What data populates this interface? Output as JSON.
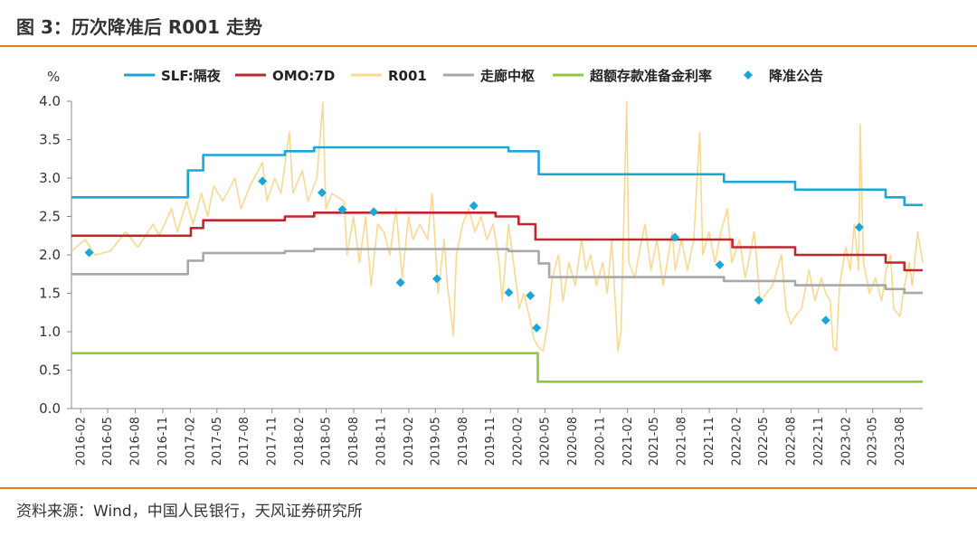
{
  "figure_title": "图 3：历次降准后 R001 走势",
  "source": "资料来源：Wind，中国人民银行，天风证券研究所",
  "chart_data": {
    "type": "line",
    "ylabel": "%",
    "ylim": [
      0,
      4.0
    ],
    "yticks": [
      "4.0",
      "3.5",
      "3.0",
      "2.5",
      "2.0",
      "1.5",
      "1.0",
      "0.5",
      "0.0"
    ],
    "yticks_values": [
      4.0,
      3.5,
      3.0,
      2.5,
      2.0,
      1.5,
      1.0,
      0.5,
      0.0
    ],
    "xlim": [
      "2016-01-01",
      "2023-10-15"
    ],
    "xticks": [
      "2016-02",
      "2016-05",
      "2016-08",
      "2016-11",
      "2017-02",
      "2017-05",
      "2017-08",
      "2017-11",
      "2018-02",
      "2018-05",
      "2018-08",
      "2018-11",
      "2019-02",
      "2019-05",
      "2019-08",
      "2019-11",
      "2020-02",
      "2020-05",
      "2020-08",
      "2020-11",
      "2021-02",
      "2021-05",
      "2021-08",
      "2021-11",
      "2022-02",
      "2022-05",
      "2022-08",
      "2022-11",
      "2023-02",
      "2023-05",
      "2023-08"
    ],
    "legend_position": "top",
    "series": [
      {
        "name": "SLF:隔夜",
        "color": "#1aa7d8",
        "kind": "step",
        "points": [
          [
            "2016-01-01",
            2.75
          ],
          [
            "2017-01-24",
            3.1
          ],
          [
            "2017-03-16",
            3.3
          ],
          [
            "2017-12-14",
            3.35
          ],
          [
            "2018-03-22",
            3.4
          ],
          [
            "2019-12-31",
            3.35
          ],
          [
            "2020-04-10",
            3.05
          ],
          [
            "2021-12-20",
            2.95
          ],
          [
            "2022-08-15",
            2.85
          ],
          [
            "2023-06-13",
            2.75
          ],
          [
            "2023-08-15",
            2.65
          ],
          [
            "2023-10-15",
            2.65
          ]
        ]
      },
      {
        "name": "OMO:7D",
        "color": "#c0262d",
        "kind": "step",
        "points": [
          [
            "2016-01-01",
            2.25
          ],
          [
            "2017-02-03",
            2.35
          ],
          [
            "2017-03-16",
            2.45
          ],
          [
            "2017-12-14",
            2.5
          ],
          [
            "2018-03-22",
            2.55
          ],
          [
            "2019-11-18",
            2.5
          ],
          [
            "2020-02-03",
            2.4
          ],
          [
            "2020-03-30",
            2.2
          ],
          [
            "2022-01-17",
            2.1
          ],
          [
            "2022-08-15",
            2.0
          ],
          [
            "2023-06-13",
            1.9
          ],
          [
            "2023-08-15",
            1.8
          ],
          [
            "2023-10-15",
            1.8
          ]
        ]
      },
      {
        "name": "R001",
        "color": "#fad890",
        "kind": "line",
        "width": 1.6,
        "points": [
          [
            "2016-01-01",
            2.05
          ],
          [
            "2016-02-15",
            2.2
          ],
          [
            "2016-03-20",
            2.0
          ],
          [
            "2016-05-10",
            2.05
          ],
          [
            "2016-06-30",
            2.3
          ],
          [
            "2016-08-10",
            2.1
          ],
          [
            "2016-09-30",
            2.4
          ],
          [
            "2016-10-20",
            2.25
          ],
          [
            "2016-11-30",
            2.6
          ],
          [
            "2016-12-20",
            2.3
          ],
          [
            "2017-01-20",
            2.7
          ],
          [
            "2017-02-10",
            2.4
          ],
          [
            "2017-03-10",
            2.8
          ],
          [
            "2017-03-31",
            2.5
          ],
          [
            "2017-04-20",
            2.9
          ],
          [
            "2017-05-20",
            2.7
          ],
          [
            "2017-06-30",
            3.0
          ],
          [
            "2017-07-20",
            2.6
          ],
          [
            "2017-08-20",
            2.9
          ],
          [
            "2017-09-30",
            3.2
          ],
          [
            "2017-10-15",
            2.7
          ],
          [
            "2017-11-10",
            3.0
          ],
          [
            "2017-12-01",
            2.8
          ],
          [
            "2017-12-29",
            3.6
          ],
          [
            "2018-01-10",
            2.8
          ],
          [
            "2018-02-10",
            3.1
          ],
          [
            "2018-03-01",
            2.7
          ],
          [
            "2018-03-31",
            3.0
          ],
          [
            "2018-04-20",
            3.98
          ],
          [
            "2018-04-30",
            2.6
          ],
          [
            "2018-05-20",
            2.8
          ],
          [
            "2018-06-30",
            2.7
          ],
          [
            "2018-07-10",
            2.0
          ],
          [
            "2018-07-31",
            2.5
          ],
          [
            "2018-08-20",
            1.9
          ],
          [
            "2018-09-10",
            2.5
          ],
          [
            "2018-09-28",
            1.6
          ],
          [
            "2018-10-20",
            2.4
          ],
          [
            "2018-11-10",
            2.3
          ],
          [
            "2018-11-30",
            2.0
          ],
          [
            "2018-12-20",
            2.6
          ],
          [
            "2019-01-10",
            1.7
          ],
          [
            "2019-01-31",
            2.5
          ],
          [
            "2019-02-15",
            2.2
          ],
          [
            "2019-03-10",
            2.4
          ],
          [
            "2019-04-05",
            2.2
          ],
          [
            "2019-04-20",
            2.8
          ],
          [
            "2019-05-10",
            1.5
          ],
          [
            "2019-05-30",
            2.2
          ],
          [
            "2019-06-10",
            1.6
          ],
          [
            "2019-06-30",
            0.95
          ],
          [
            "2019-07-10",
            2.0
          ],
          [
            "2019-07-31",
            2.4
          ],
          [
            "2019-08-20",
            2.6
          ],
          [
            "2019-09-10",
            2.3
          ],
          [
            "2019-09-30",
            2.5
          ],
          [
            "2019-10-20",
            2.2
          ],
          [
            "2019-11-10",
            2.4
          ],
          [
            "2019-11-30",
            1.9
          ],
          [
            "2019-12-10",
            1.4
          ],
          [
            "2019-12-31",
            2.4
          ],
          [
            "2020-01-20",
            1.8
          ],
          [
            "2020-02-05",
            1.3
          ],
          [
            "2020-02-20",
            1.5
          ],
          [
            "2020-03-10",
            1.2
          ],
          [
            "2020-03-25",
            0.9
          ],
          [
            "2020-04-10",
            0.8
          ],
          [
            "2020-04-25",
            0.75
          ],
          [
            "2020-05-10",
            1.1
          ],
          [
            "2020-05-25",
            1.7
          ],
          [
            "2020-06-15",
            2.0
          ],
          [
            "2020-06-30",
            1.4
          ],
          [
            "2020-07-20",
            1.9
          ],
          [
            "2020-08-10",
            1.6
          ],
          [
            "2020-08-31",
            2.2
          ],
          [
            "2020-09-15",
            1.8
          ],
          [
            "2020-09-30",
            2.0
          ],
          [
            "2020-10-20",
            1.6
          ],
          [
            "2020-11-10",
            1.9
          ],
          [
            "2020-11-25",
            1.5
          ],
          [
            "2020-12-10",
            2.2
          ],
          [
            "2020-12-31",
            0.75
          ],
          [
            "2021-01-10",
            1.0
          ],
          [
            "2021-01-29",
            4.0
          ],
          [
            "2021-02-05",
            1.9
          ],
          [
            "2021-02-25",
            1.7
          ],
          [
            "2021-03-15",
            2.1
          ],
          [
            "2021-03-31",
            2.4
          ],
          [
            "2021-04-20",
            1.8
          ],
          [
            "2021-05-10",
            2.2
          ],
          [
            "2021-05-31",
            1.6
          ],
          [
            "2021-06-30",
            2.3
          ],
          [
            "2021-07-10",
            1.8
          ],
          [
            "2021-07-31",
            2.2
          ],
          [
            "2021-08-20",
            1.8
          ],
          [
            "2021-09-10",
            2.2
          ],
          [
            "2021-09-30",
            3.6
          ],
          [
            "2021-10-10",
            2.0
          ],
          [
            "2021-10-31",
            2.3
          ],
          [
            "2021-11-20",
            1.9
          ],
          [
            "2021-12-10",
            2.3
          ],
          [
            "2021-12-31",
            2.6
          ],
          [
            "2022-01-15",
            1.9
          ],
          [
            "2022-02-10",
            2.2
          ],
          [
            "2022-03-01",
            1.7
          ],
          [
            "2022-03-31",
            2.3
          ],
          [
            "2022-04-20",
            1.4
          ],
          [
            "2022-05-10",
            1.5
          ],
          [
            "2022-05-31",
            1.6
          ],
          [
            "2022-06-30",
            2.0
          ],
          [
            "2022-07-15",
            1.3
          ],
          [
            "2022-07-31",
            1.1
          ],
          [
            "2022-08-15",
            1.2
          ],
          [
            "2022-09-05",
            1.3
          ],
          [
            "2022-09-30",
            1.8
          ],
          [
            "2022-10-20",
            1.4
          ],
          [
            "2022-11-10",
            1.7
          ],
          [
            "2022-11-25",
            1.5
          ],
          [
            "2022-12-10",
            1.4
          ],
          [
            "2022-12-20",
            0.8
          ],
          [
            "2022-12-30",
            0.75
          ],
          [
            "2023-01-10",
            1.6
          ],
          [
            "2023-01-31",
            2.1
          ],
          [
            "2023-02-15",
            1.8
          ],
          [
            "2023-02-28",
            2.4
          ],
          [
            "2023-03-15",
            1.8
          ],
          [
            "2023-03-20",
            3.7
          ],
          [
            "2023-03-31",
            1.9
          ],
          [
            "2023-04-20",
            1.5
          ],
          [
            "2023-05-10",
            1.7
          ],
          [
            "2023-05-31",
            1.4
          ],
          [
            "2023-06-15",
            1.8
          ],
          [
            "2023-06-30",
            2.0
          ],
          [
            "2023-07-10",
            1.3
          ],
          [
            "2023-07-31",
            1.2
          ],
          [
            "2023-08-15",
            1.6
          ],
          [
            "2023-08-31",
            1.9
          ],
          [
            "2023-09-10",
            1.6
          ],
          [
            "2023-09-28",
            2.3
          ],
          [
            "2023-10-15",
            1.9
          ]
        ]
      },
      {
        "name": "走廊中枢",
        "color": "#a8a8a8",
        "kind": "step",
        "points": [
          [
            "2016-01-01",
            1.75
          ],
          [
            "2017-01-24",
            1.925
          ],
          [
            "2017-03-16",
            2.025
          ],
          [
            "2017-12-14",
            2.05
          ],
          [
            "2018-03-22",
            2.075
          ],
          [
            "2019-12-31",
            2.05
          ],
          [
            "2020-04-10",
            1.89
          ],
          [
            "2020-05-15",
            1.71
          ],
          [
            "2021-12-20",
            1.66
          ],
          [
            "2022-08-15",
            1.605
          ],
          [
            "2023-06-13",
            1.555
          ],
          [
            "2023-08-15",
            1.505
          ],
          [
            "2023-10-15",
            1.505
          ]
        ]
      },
      {
        "name": "超额存款准备金利率",
        "color": "#8ec641",
        "kind": "step",
        "points": [
          [
            "2016-01-01",
            0.72
          ],
          [
            "2020-04-07",
            0.35
          ],
          [
            "2023-10-15",
            0.35
          ]
        ]
      },
      {
        "name": "降准公告",
        "color": "#1aa7d8",
        "kind": "marker",
        "points": [
          [
            "2016-02-29",
            2.03
          ],
          [
            "2017-09-30",
            2.96
          ],
          [
            "2018-04-17",
            2.81
          ],
          [
            "2018-06-24",
            2.59
          ],
          [
            "2018-10-07",
            2.56
          ],
          [
            "2019-01-04",
            1.64
          ],
          [
            "2019-05-06",
            1.69
          ],
          [
            "2019-09-06",
            2.64
          ],
          [
            "2020-01-01",
            1.51
          ],
          [
            "2020-03-13",
            1.47
          ],
          [
            "2020-04-03",
            1.05
          ],
          [
            "2021-07-09",
            2.23
          ],
          [
            "2021-12-06",
            1.87
          ],
          [
            "2022-04-15",
            1.41
          ],
          [
            "2022-11-25",
            1.15
          ],
          [
            "2023-03-17",
            2.36
          ]
        ]
      }
    ]
  }
}
